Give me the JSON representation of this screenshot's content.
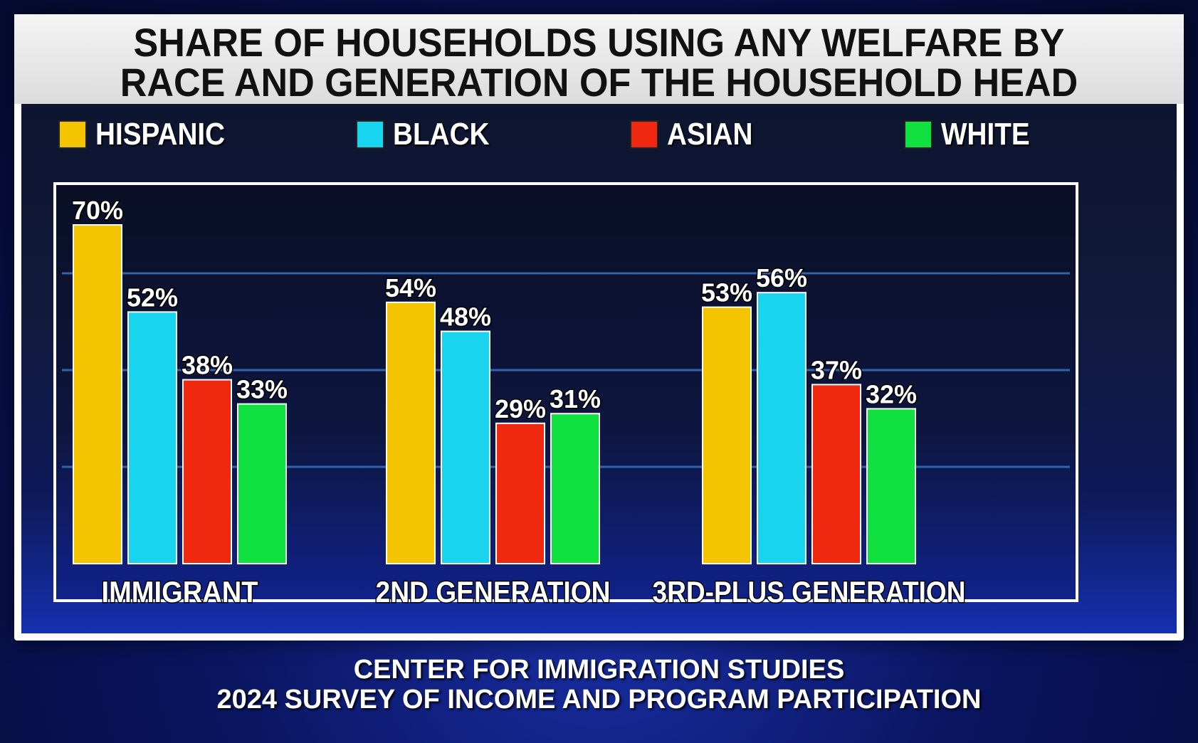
{
  "title_lines": [
    "SHARE OF HOUSEHOLDS USING ANY WELFARE BY",
    "RACE AND GENERATION OF THE HOUSEHOLD HEAD"
  ],
  "source_lines": [
    "CENTER FOR IMMIGRATION STUDIES",
    "2024 SURVEY OF INCOME AND PROGRAM PARTICIPATION"
  ],
  "chart_data": {
    "type": "bar",
    "title": "SHARE OF HOUSEHOLDS USING ANY WELFARE BY RACE AND GENERATION OF THE HOUSEHOLD HEAD",
    "categories": [
      "IMMIGRANT",
      "2ND GENERATION",
      "3RD-PLUS GENERATION"
    ],
    "series": [
      {
        "name": "HISPANIC",
        "color": "#f5c400",
        "values": [
          70,
          54,
          53
        ]
      },
      {
        "name": "BLACK",
        "color": "#18d4ef",
        "values": [
          52,
          48,
          56
        ]
      },
      {
        "name": "ASIAN",
        "color": "#f02810",
        "values": [
          38,
          29,
          37
        ]
      },
      {
        "name": "WHITE",
        "color": "#10e040",
        "values": [
          33,
          31,
          32
        ]
      }
    ],
    "value_suffix": "%",
    "ylim": [
      0,
      80
    ],
    "legend_position": "top",
    "grid": true
  }
}
